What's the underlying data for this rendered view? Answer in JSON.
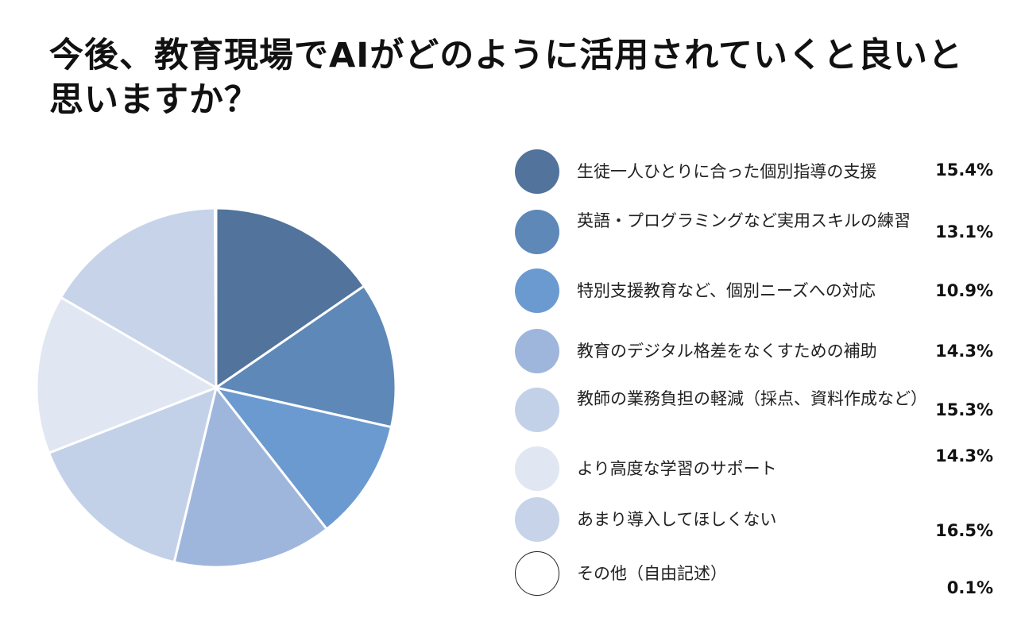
{
  "chart_data": {
    "type": "pie",
    "title": "今後、教育現場でAIがどのように活用されていくと良いと思いますか？",
    "categories": [
      "生徒一人ひとりに合った個別指導の支援",
      "英語・プログラミングなど実用スキルの練習",
      "特別支援教育など、個別ニーズへの対応",
      "教育のデジタル格差をなくすための補助",
      "教師の業務負担の軽減（採点、資料作成など）",
      "より高度な学習のサポート",
      "あまり導入してほしくない",
      "その他（自由記述）"
    ],
    "values": [
      15.4,
      13.1,
      10.9,
      14.3,
      15.3,
      14.3,
      16.5,
      0.1
    ],
    "value_labels": [
      "15.4%",
      "13.1%",
      "10.9%",
      "14.3%",
      "15.3%",
      "14.3%",
      "16.5%",
      "0.1%"
    ],
    "colors": [
      "#51739c",
      "#5e88b8",
      "#6b9ad0",
      "#9fb6dc",
      "#c3d1e8",
      "#e0e6f2",
      "#c6d3e9",
      "#ffffff"
    ],
    "start_angle": "12 o'clock",
    "direction": "clockwise",
    "legend_position": "right"
  }
}
